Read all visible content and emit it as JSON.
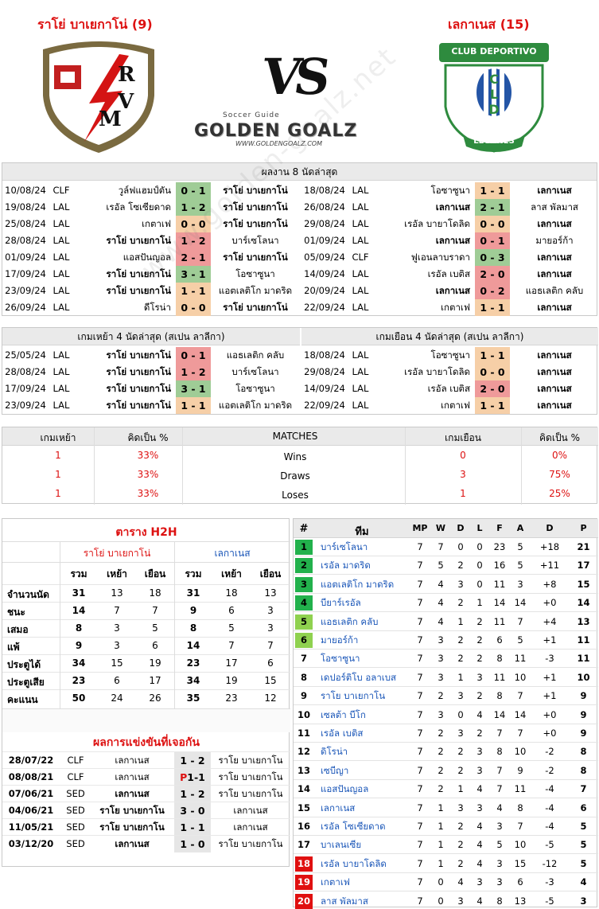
{
  "header": {
    "home_title": "ราโย่ บาเยกาโน่ (9)",
    "away_title": "เลกาเนส (15)",
    "vs": "VS",
    "brand_top": "Soccer Guide",
    "brand": "GOLDEN GOALZ",
    "brand_url": "WWW.GOLDENGOALZ.COM",
    "watermark": "www.golden-goalz.net"
  },
  "away_logo": {
    "line1": "CLUB DEPORTIVO",
    "line2": "LEGANÉS",
    "letters": "C L D"
  },
  "home_logo": {
    "letters": "R V M"
  },
  "recent8": {
    "title": "ผลงาน 8 นัดล่าสุด",
    "home": [
      {
        "date": "10/08/24",
        "comp": "CLF",
        "home": "วูล์ฟแฮมป์ตัน",
        "score": "0 - 1",
        "away": "ราโย่ บาเยกาโน่",
        "res": "win",
        "hb": false,
        "ab": true
      },
      {
        "date": "19/08/24",
        "comp": "LAL",
        "home": "เรอัล โซเซียดาด",
        "score": "1 - 2",
        "away": "ราโย่ บาเยกาโน่",
        "res": "win",
        "hb": false,
        "ab": true
      },
      {
        "date": "25/08/24",
        "comp": "LAL",
        "home": "เกตาเฟ",
        "score": "0 - 0",
        "away": "ราโย่ บาเยกาโน่",
        "res": "draw",
        "hb": false,
        "ab": true
      },
      {
        "date": "28/08/24",
        "comp": "LAL",
        "home": "ราโย่ บาเยกาโน่",
        "score": "1 - 2",
        "away": "บาร์เซโลนา",
        "res": "loss",
        "hb": true,
        "ab": false
      },
      {
        "date": "01/09/24",
        "comp": "LAL",
        "home": "แอสปันญอล",
        "score": "2 - 1",
        "away": "ราโย่ บาเยกาโน่",
        "res": "loss",
        "hb": false,
        "ab": true
      },
      {
        "date": "17/09/24",
        "comp": "LAL",
        "home": "ราโย่ บาเยกาโน่",
        "score": "3 - 1",
        "away": "โอซาซูนา",
        "res": "win",
        "hb": true,
        "ab": false
      },
      {
        "date": "23/09/24",
        "comp": "LAL",
        "home": "ราโย่ บาเยกาโน่",
        "score": "1 - 1",
        "away": "แอตเลติโก มาดริด",
        "res": "draw",
        "hb": true,
        "ab": false
      },
      {
        "date": "26/09/24",
        "comp": "LAL",
        "home": "ดีโรน่า",
        "score": "0 - 0",
        "away": "ราโย่ บาเยกาโน่",
        "res": "draw",
        "hb": false,
        "ab": true
      }
    ],
    "away": [
      {
        "date": "18/08/24",
        "comp": "LAL",
        "home": "โอซาซูนา",
        "score": "1 - 1",
        "away": "เลกาเนส",
        "res": "draw",
        "hb": false,
        "ab": true
      },
      {
        "date": "26/08/24",
        "comp": "LAL",
        "home": "เลกาเนส",
        "score": "2 - 1",
        "away": "ลาส พัลมาส",
        "res": "win",
        "hb": true,
        "ab": false
      },
      {
        "date": "29/08/24",
        "comp": "LAL",
        "home": "เรอัล บายาโดลิด",
        "score": "0 - 0",
        "away": "เลกาเนส",
        "res": "draw",
        "hb": false,
        "ab": true
      },
      {
        "date": "01/09/24",
        "comp": "LAL",
        "home": "เลกาเนส",
        "score": "0 - 1",
        "away": "มายอร์ก้า",
        "res": "loss",
        "hb": true,
        "ab": false
      },
      {
        "date": "05/09/24",
        "comp": "CLF",
        "home": "ฟูเอนลาบราดา",
        "score": "0 - 3",
        "away": "เลกาเนส",
        "res": "win",
        "hb": false,
        "ab": true
      },
      {
        "date": "14/09/24",
        "comp": "LAL",
        "home": "เรอัล เบติส",
        "score": "2 - 0",
        "away": "เลกาเนส",
        "res": "loss",
        "hb": false,
        "ab": true
      },
      {
        "date": "20/09/24",
        "comp": "LAL",
        "home": "เลกาเนส",
        "score": "0 - 2",
        "away": "แอธเลติก คลับ",
        "res": "loss",
        "hb": true,
        "ab": false
      },
      {
        "date": "22/09/24",
        "comp": "LAL",
        "home": "เกตาเฟ",
        "score": "1 - 1",
        "away": "เลกาเนส",
        "res": "draw",
        "hb": false,
        "ab": true
      }
    ]
  },
  "recent4": {
    "home_title": "เกมเหย้า 4 นัดล่าสุด (สเปน ลาลีกา)",
    "away_title": "เกมเยือน 4 นัดล่าสุด (สเปน ลาลีกา)",
    "home": [
      {
        "date": "25/05/24",
        "comp": "LAL",
        "home": "ราโย่ บาเยกาโน่",
        "score": "0 - 1",
        "away": "แอธเลติก คลับ",
        "res": "loss",
        "hb": true,
        "ab": false
      },
      {
        "date": "28/08/24",
        "comp": "LAL",
        "home": "ราโย่ บาเยกาโน่",
        "score": "1 - 2",
        "away": "บาร์เซโลนา",
        "res": "loss",
        "hb": true,
        "ab": false
      },
      {
        "date": "17/09/24",
        "comp": "LAL",
        "home": "ราโย่ บาเยกาโน่",
        "score": "3 - 1",
        "away": "โอซาซูนา",
        "res": "win",
        "hb": true,
        "ab": false
      },
      {
        "date": "23/09/24",
        "comp": "LAL",
        "home": "ราโย่ บาเยกาโน่",
        "score": "1 - 1",
        "away": "แอตเลติโก มาดริด",
        "res": "draw",
        "hb": true,
        "ab": false
      }
    ],
    "away": [
      {
        "date": "18/08/24",
        "comp": "LAL",
        "home": "โอซาซูนา",
        "score": "1 - 1",
        "away": "เลกาเนส",
        "res": "draw",
        "hb": false,
        "ab": true
      },
      {
        "date": "29/08/24",
        "comp": "LAL",
        "home": "เรอัล บายาโดลิด",
        "score": "0 - 0",
        "away": "เลกาเนส",
        "res": "draw",
        "hb": false,
        "ab": true
      },
      {
        "date": "14/09/24",
        "comp": "LAL",
        "home": "เรอัล เบติส",
        "score": "2 - 0",
        "away": "เลกาเนส",
        "res": "loss",
        "hb": false,
        "ab": true
      },
      {
        "date": "22/09/24",
        "comp": "LAL",
        "home": "เกตาเฟ",
        "score": "1 - 1",
        "away": "เลกาเนส",
        "res": "draw",
        "hb": false,
        "ab": true
      }
    ]
  },
  "stats": {
    "h_home": "เกมเหย้า",
    "h_pct": "คิดเป็น %",
    "h_matches": "MATCHES",
    "h_away": "เกมเยือน",
    "h_pct2": "คิดเป็น %",
    "rows": [
      {
        "hv": "1",
        "hp": "33%",
        "label": "Wins",
        "av": "0",
        "ap": "0%"
      },
      {
        "hv": "1",
        "hp": "33%",
        "label": "Draws",
        "av": "3",
        "ap": "75%"
      },
      {
        "hv": "1",
        "hp": "33%",
        "label": "Loses",
        "av": "1",
        "ap": "25%"
      }
    ]
  },
  "h2h": {
    "title": "ตาราง H2H",
    "home_team": "ราโย่ บาเยกาโน่",
    "away_team": "เลกาเนส",
    "sub": [
      "รวม",
      "เหย้า",
      "เยือน",
      "รวม",
      "เหย้า",
      "เยือน"
    ],
    "rows": [
      {
        "label": "จำนวนนัด",
        "v": [
          "31",
          "13",
          "18",
          "31",
          "18",
          "13"
        ]
      },
      {
        "label": "ชนะ",
        "v": [
          "14",
          "7",
          "7",
          "9",
          "6",
          "3"
        ]
      },
      {
        "label": "เสมอ",
        "v": [
          "8",
          "3",
          "5",
          "8",
          "5",
          "3"
        ]
      },
      {
        "label": "แพ้",
        "v": [
          "9",
          "3",
          "6",
          "14",
          "7",
          "7"
        ]
      },
      {
        "label": "ประตูได้",
        "v": [
          "34",
          "15",
          "19",
          "23",
          "17",
          "6"
        ]
      },
      {
        "label": "ประตูเสีย",
        "v": [
          "23",
          "6",
          "17",
          "34",
          "19",
          "15"
        ]
      },
      {
        "label": "คะแนน",
        "v": [
          "50",
          "24",
          "26",
          "35",
          "23",
          "12"
        ]
      }
    ],
    "meet_title": "ผลการแข่งขันที่เจอกัน",
    "meets": [
      {
        "date": "28/07/22",
        "comp": "CLF",
        "home": "เลกาเนส",
        "score": "1 - 2",
        "away": "ราโย บาเยกาโน"
      },
      {
        "date": "08/08/21",
        "comp": "CLF",
        "home": "เลกาเนส",
        "pen": "P",
        "score": "1-1",
        "away": "ราโย บาเยกาโน"
      },
      {
        "date": "07/06/21",
        "comp": "SED",
        "home": "เลกาเนส",
        "score": "1 - 2",
        "away": "ราโย บาเยกาโน"
      },
      {
        "date": "04/06/21",
        "comp": "SED",
        "home": "ราโย บาเยกาโน",
        "score": "3 - 0",
        "away": "เลกาเนส"
      },
      {
        "date": "11/05/21",
        "comp": "SED",
        "home": "ราโย บาเยกาโน",
        "score": "1 - 1",
        "away": "เลกาเนส"
      },
      {
        "date": "03/12/20",
        "comp": "SED",
        "home": "เลกาเนส",
        "score": "1 - 0",
        "away": "ราโย บาเยกาโน"
      }
    ]
  },
  "table": {
    "headers": [
      "#",
      "ทีม",
      "MP",
      "W",
      "D",
      "L",
      "F",
      "A",
      "D",
      "P"
    ],
    "rows": [
      {
        "pos": "1",
        "team": "บาร์เซโลนา",
        "v": [
          "7",
          "7",
          "0",
          "0",
          "23",
          "5",
          "+18",
          "21"
        ],
        "zone": "green"
      },
      {
        "pos": "2",
        "team": "เรอัล มาดริด",
        "v": [
          "7",
          "5",
          "2",
          "0",
          "16",
          "5",
          "+11",
          "17"
        ],
        "zone": "green"
      },
      {
        "pos": "3",
        "team": "แอตเลติโก มาดริด",
        "v": [
          "7",
          "4",
          "3",
          "0",
          "11",
          "3",
          "+8",
          "15"
        ],
        "zone": "green"
      },
      {
        "pos": "4",
        "team": "บียาร์เรอัล",
        "v": [
          "7",
          "4",
          "2",
          "1",
          "14",
          "14",
          "+0",
          "14"
        ],
        "zone": "green"
      },
      {
        "pos": "5",
        "team": "แอธเลติก คลับ",
        "v": [
          "7",
          "4",
          "1",
          "2",
          "11",
          "7",
          "+4",
          "13"
        ],
        "zone": "lime"
      },
      {
        "pos": "6",
        "team": "มายอร์ก้า",
        "v": [
          "7",
          "3",
          "2",
          "2",
          "6",
          "5",
          "+1",
          "11"
        ],
        "zone": "lime"
      },
      {
        "pos": "7",
        "team": "โอซาซูนา",
        "v": [
          "7",
          "3",
          "2",
          "2",
          "8",
          "11",
          "-3",
          "11"
        ],
        "zone": ""
      },
      {
        "pos": "8",
        "team": "เดปอร์ติโบ อลาเบส",
        "v": [
          "7",
          "3",
          "1",
          "3",
          "11",
          "10",
          "+1",
          "10"
        ],
        "zone": ""
      },
      {
        "pos": "9",
        "team": "ราโย บาเยกาโน",
        "v": [
          "7",
          "2",
          "3",
          "2",
          "8",
          "7",
          "+1",
          "9"
        ],
        "zone": ""
      },
      {
        "pos": "10",
        "team": "เซลต้า บีโก",
        "v": [
          "7",
          "3",
          "0",
          "4",
          "14",
          "14",
          "+0",
          "9"
        ],
        "zone": ""
      },
      {
        "pos": "11",
        "team": "เรอัล เบติส",
        "v": [
          "7",
          "2",
          "3",
          "2",
          "7",
          "7",
          "+0",
          "9"
        ],
        "zone": ""
      },
      {
        "pos": "12",
        "team": "ดิโรน่า",
        "v": [
          "7",
          "2",
          "2",
          "3",
          "8",
          "10",
          "-2",
          "8"
        ],
        "zone": ""
      },
      {
        "pos": "13",
        "team": "เซบีญา",
        "v": [
          "7",
          "2",
          "2",
          "3",
          "7",
          "9",
          "-2",
          "8"
        ],
        "zone": ""
      },
      {
        "pos": "14",
        "team": "แอสปันญอล",
        "v": [
          "7",
          "2",
          "1",
          "4",
          "7",
          "11",
          "-4",
          "7"
        ],
        "zone": ""
      },
      {
        "pos": "15",
        "team": "เลกาเนส",
        "v": [
          "7",
          "1",
          "3",
          "3",
          "4",
          "8",
          "-4",
          "6"
        ],
        "zone": ""
      },
      {
        "pos": "16",
        "team": "เรอัล โซเซียดาด",
        "v": [
          "7",
          "1",
          "2",
          "4",
          "3",
          "7",
          "-4",
          "5"
        ],
        "zone": ""
      },
      {
        "pos": "17",
        "team": "บาเลนเซีย",
        "v": [
          "7",
          "1",
          "2",
          "4",
          "5",
          "10",
          "-5",
          "5"
        ],
        "zone": ""
      },
      {
        "pos": "18",
        "team": "เรอัล บายาโดลิด",
        "v": [
          "7",
          "1",
          "2",
          "4",
          "3",
          "15",
          "-12",
          "5"
        ],
        "zone": "red"
      },
      {
        "pos": "19",
        "team": "เกตาเฟ",
        "v": [
          "7",
          "0",
          "4",
          "3",
          "3",
          "6",
          "-3",
          "4"
        ],
        "zone": "red"
      },
      {
        "pos": "20",
        "team": "ลาส พัลมาส",
        "v": [
          "7",
          "0",
          "3",
          "4",
          "8",
          "13",
          "-5",
          "3"
        ],
        "zone": "red"
      }
    ]
  },
  "colors": {
    "win": "#9fcc96",
    "draw": "#f6cfa7",
    "loss": "#ef9a9a",
    "title": "#d11111",
    "link": "#1a56b8",
    "zone_green": "#22b14c",
    "zone_lime": "#8fd14f",
    "zone_red": "#e01010"
  }
}
